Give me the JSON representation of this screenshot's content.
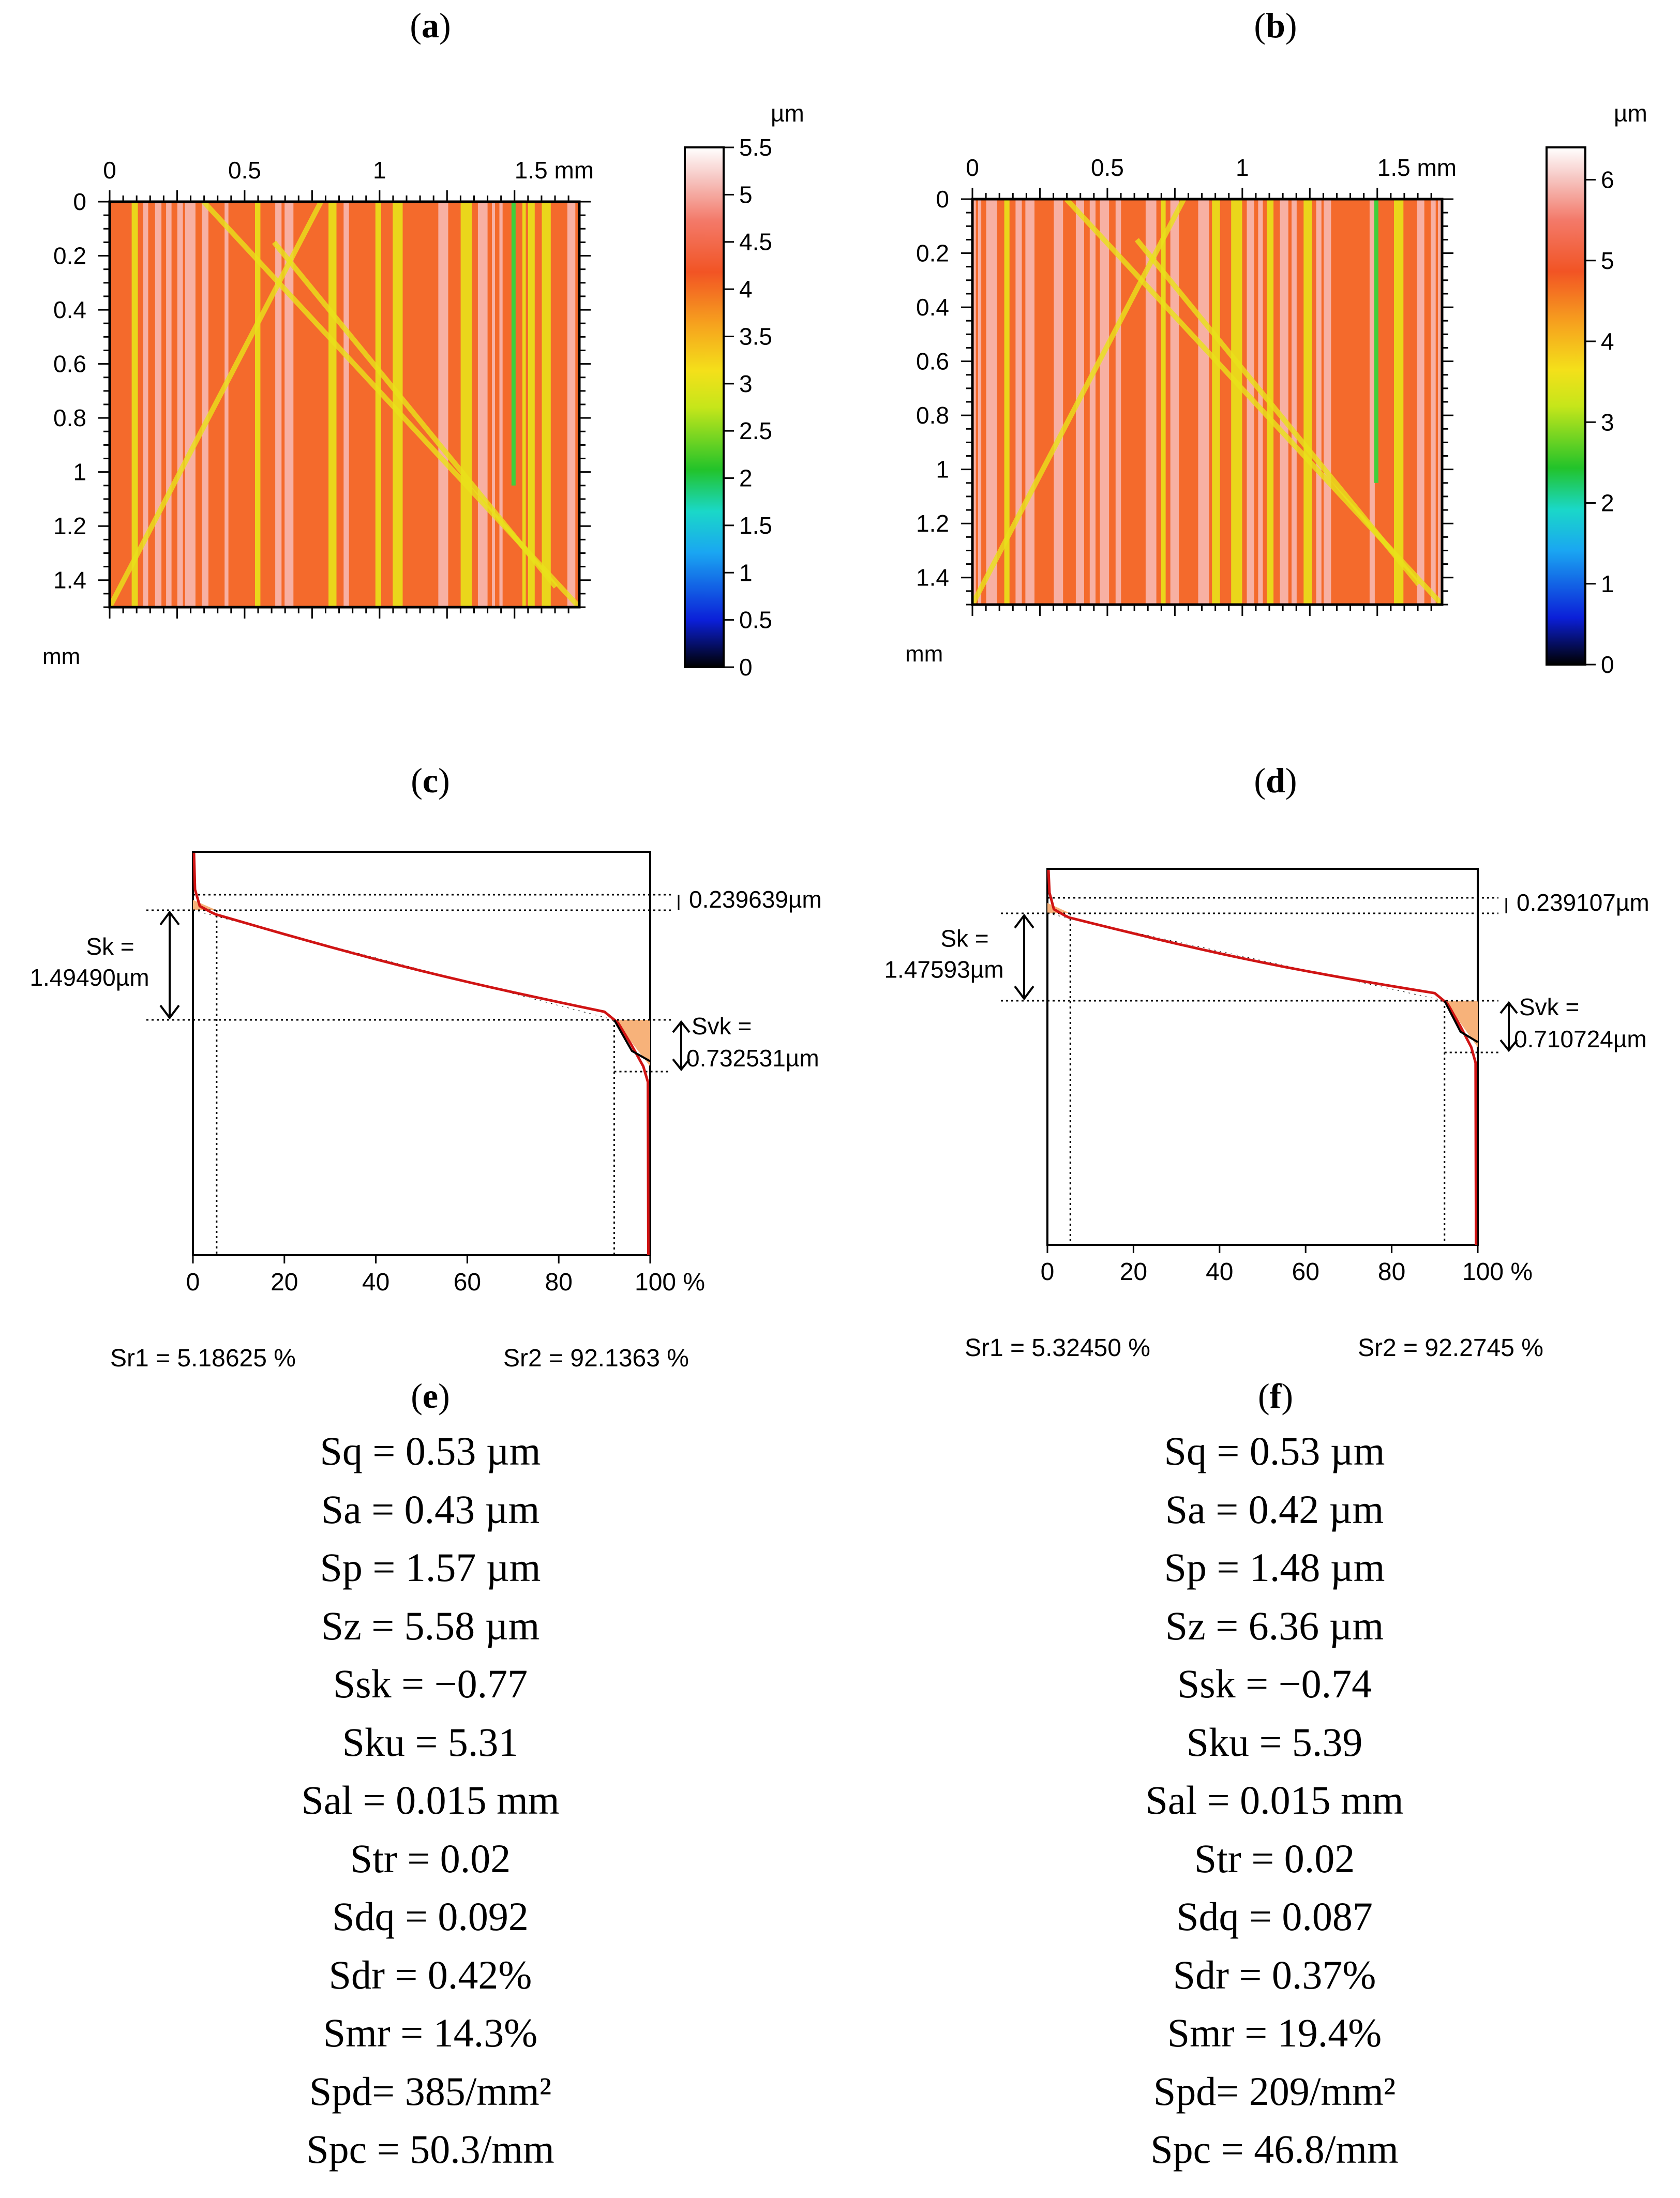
{
  "panels": {
    "a": {
      "label": "a"
    },
    "b": {
      "label": "b"
    },
    "c": {
      "label": "c"
    },
    "d": {
      "label": "d"
    },
    "e": {
      "label": "e"
    },
    "f": {
      "label": "f"
    }
  },
  "maps": {
    "a": {
      "x_ticks": [
        "0",
        "0.5",
        "1",
        "1.5 mm"
      ],
      "y_ticks": [
        "0",
        "0.2",
        "0.4",
        "0.6",
        "0.8",
        "1",
        "1.2",
        "1.4"
      ],
      "corner_unit": "mm",
      "colorbar_unit": "µm",
      "colorbar_ticks": [
        "5.5",
        "5",
        "4.5",
        "4",
        "3.5",
        "3",
        "2.5",
        "2",
        "1.5",
        "1",
        "0.5",
        "0"
      ],
      "colorbar_max": 5.5
    },
    "b": {
      "x_ticks": [
        "0",
        "0.5",
        "1",
        "1.5 mm"
      ],
      "y_ticks": [
        "0",
        "0.2",
        "0.4",
        "0.6",
        "0.8",
        "1",
        "1.2",
        "1.4"
      ],
      "corner_unit": "mm",
      "colorbar_unit": "µm",
      "colorbar_ticks": [
        "6",
        "5",
        "4",
        "3",
        "2",
        "1",
        "0"
      ],
      "colorbar_max": 6.4
    }
  },
  "colors": {
    "map_base": "#f46a2c",
    "map_light": "#f7b8b0",
    "map_yellow": "#e9e21a",
    "map_green": "#3fcf3a",
    "curve_red": "#d01414",
    "fill_orange": "#f7b27a"
  },
  "curves": {
    "c": {
      "x_ticks": [
        "0",
        "20",
        "40",
        "60",
        "80",
        "100 %"
      ],
      "spk_value": "0.239639µm",
      "sk_label": "Sk =",
      "sk_value": "1.49490µm",
      "svk_label": "Svk =",
      "svk_value": "0.732531µm",
      "sr1_text": "Sr1 = 5.18625 %",
      "sr2_text": "Sr2 = 92.1363 %",
      "sr1": 5.18625,
      "sr2": 92.1363
    },
    "d": {
      "x_ticks": [
        "0",
        "20",
        "40",
        "60",
        "80",
        "100 %"
      ],
      "spk_value": "0.239107µm",
      "sk_label": "Sk =",
      "sk_value": "1.47593µm",
      "svk_label": "Svk =",
      "svk_value": "0.710724µm",
      "sr1_text": "Sr1 = 5.32450 %",
      "sr2_text": "Sr2 = 92.2745 %",
      "sr1": 5.3245,
      "sr2": 92.2745
    }
  },
  "stats": {
    "e": [
      "Sq = 0.53 µm",
      "Sa = 0.43 µm",
      "Sp = 1.57 µm",
      "Sz = 5.58 µm",
      "Ssk = −0.77",
      "Sku = 5.31",
      "Sal = 0.015 mm",
      "Str = 0.02",
      "Sdq = 0.092",
      "Sdr = 0.42%",
      "Smr = 14.3%",
      "Spd= 385/mm²",
      "Spc = 50.3/mm"
    ],
    "f": [
      "Sq = 0.53 µm",
      "Sa = 0.42 µm",
      "Sp = 1.48 µm",
      "Sz = 6.36 µm",
      "Ssk = −0.74",
      "Sku = 5.39",
      "Sal = 0.015 mm",
      "Str = 0.02",
      "Sdq = 0.087",
      "Sdr = 0.37%",
      "Smr = 19.4%",
      "Spd= 209/mm²",
      "Spc = 46.8/mm"
    ]
  }
}
